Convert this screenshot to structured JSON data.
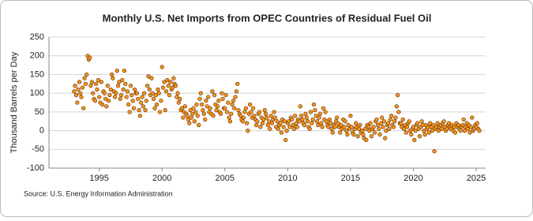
{
  "chart_data": {
    "type": "scatter",
    "title": "Monthly U.S. Net Imports from OPEC Countries of Residual Fuel Oil",
    "y_label": "Thousand Barrels per Day",
    "source": "Source: U.S. Energy Information Administration",
    "color": "#f7941d",
    "xlim": [
      1991,
      2025.75
    ],
    "xticks": [
      1995,
      2000,
      2005,
      2010,
      2015,
      2020,
      2025
    ],
    "ylim": [
      -100,
      250
    ],
    "yticks": [
      -100,
      -50,
      0,
      50,
      100,
      150,
      200,
      250
    ],
    "grid": true,
    "x": [
      1993,
      1993.08,
      1993.17,
      1993.25,
      1993.33,
      1993.42,
      1993.5,
      1993.58,
      1993.67,
      1993.75,
      1993.83,
      1993.92,
      1994,
      1994.08,
      1994.17,
      1994.25,
      1994.33,
      1994.42,
      1994.5,
      1994.58,
      1994.67,
      1994.75,
      1994.83,
      1994.92,
      1995,
      1995.08,
      1995.17,
      1995.25,
      1995.33,
      1995.42,
      1995.5,
      1995.58,
      1995.67,
      1995.75,
      1995.83,
      1995.92,
      1996,
      1996.08,
      1996.17,
      1996.25,
      1996.33,
      1996.42,
      1996.5,
      1996.58,
      1996.67,
      1996.75,
      1996.83,
      1996.92,
      1997,
      1997.08,
      1997.17,
      1997.25,
      1997.33,
      1997.42,
      1997.5,
      1997.58,
      1997.67,
      1997.75,
      1997.83,
      1997.92,
      1998,
      1998.08,
      1998.17,
      1998.25,
      1998.33,
      1998.42,
      1998.5,
      1998.58,
      1998.67,
      1998.75,
      1998.83,
      1998.92,
      1999,
      1999.08,
      1999.17,
      1999.25,
      1999.33,
      1999.42,
      1999.5,
      1999.58,
      1999.67,
      1999.75,
      1999.83,
      1999.92,
      2000,
      2000.08,
      2000.17,
      2000.25,
      2000.33,
      2000.42,
      2000.5,
      2000.58,
      2000.67,
      2000.75,
      2000.83,
      2000.92,
      2001,
      2001.08,
      2001.17,
      2001.25,
      2001.33,
      2001.42,
      2001.5,
      2001.58,
      2001.67,
      2001.75,
      2001.83,
      2001.92,
      2002,
      2002.08,
      2002.17,
      2002.25,
      2002.33,
      2002.42,
      2002.5,
      2002.58,
      2002.67,
      2002.75,
      2002.83,
      2002.92,
      2003,
      2003.08,
      2003.17,
      2003.25,
      2003.33,
      2003.42,
      2003.5,
      2003.58,
      2003.67,
      2003.75,
      2003.83,
      2003.92,
      2004,
      2004.08,
      2004.17,
      2004.25,
      2004.33,
      2004.42,
      2004.5,
      2004.58,
      2004.67,
      2004.75,
      2004.83,
      2004.92,
      2005,
      2005.08,
      2005.17,
      2005.25,
      2005.33,
      2005.42,
      2005.5,
      2005.58,
      2005.67,
      2005.75,
      2005.83,
      2005.92,
      2006,
      2006.08,
      2006.17,
      2006.25,
      2006.33,
      2006.42,
      2006.5,
      2006.58,
      2006.67,
      2006.75,
      2006.83,
      2006.92,
      2007,
      2007.08,
      2007.17,
      2007.25,
      2007.33,
      2007.42,
      2007.5,
      2007.58,
      2007.67,
      2007.75,
      2007.83,
      2007.92,
      2008,
      2008.08,
      2008.17,
      2008.25,
      2008.33,
      2008.42,
      2008.5,
      2008.58,
      2008.67,
      2008.75,
      2008.83,
      2008.92,
      2009,
      2009.08,
      2009.17,
      2009.25,
      2009.33,
      2009.42,
      2009.5,
      2009.58,
      2009.67,
      2009.75,
      2009.83,
      2009.92,
      2010,
      2010.08,
      2010.17,
      2010.25,
      2010.33,
      2010.42,
      2010.5,
      2010.58,
      2010.67,
      2010.75,
      2010.83,
      2010.92,
      2011,
      2011.08,
      2011.17,
      2011.25,
      2011.33,
      2011.42,
      2011.5,
      2011.58,
      2011.67,
      2011.75,
      2011.83,
      2011.92,
      2012,
      2012.08,
      2012.17,
      2012.25,
      2012.33,
      2012.42,
      2012.5,
      2012.58,
      2012.67,
      2012.75,
      2012.83,
      2012.92,
      2013,
      2013.08,
      2013.17,
      2013.25,
      2013.33,
      2013.42,
      2013.5,
      2013.58,
      2013.67,
      2013.75,
      2013.83,
      2013.92,
      2014,
      2014.08,
      2014.17,
      2014.25,
      2014.33,
      2014.42,
      2014.5,
      2014.58,
      2014.67,
      2014.75,
      2014.83,
      2014.92,
      2015,
      2015.08,
      2015.17,
      2015.25,
      2015.33,
      2015.42,
      2015.5,
      2015.58,
      2015.67,
      2015.75,
      2015.83,
      2015.92,
      2016,
      2016.08,
      2016.17,
      2016.25,
      2016.33,
      2016.42,
      2016.5,
      2016.58,
      2016.67,
      2016.75,
      2016.83,
      2016.92,
      2017,
      2017.08,
      2017.17,
      2017.25,
      2017.33,
      2017.42,
      2017.5,
      2017.58,
      2017.67,
      2017.75,
      2017.83,
      2017.92,
      2018,
      2018.08,
      2018.17,
      2018.25,
      2018.33,
      2018.42,
      2018.5,
      2018.58,
      2018.67,
      2018.75,
      2018.83,
      2018.92,
      2019,
      2019.08,
      2019.17,
      2019.25,
      2019.33,
      2019.42,
      2019.5,
      2019.58,
      2019.67,
      2019.75,
      2019.83,
      2019.92,
      2020,
      2020.08,
      2020.17,
      2020.25,
      2020.33,
      2020.42,
      2020.5,
      2020.58,
      2020.67,
      2020.75,
      2020.83,
      2020.92,
      2021,
      2021.08,
      2021.17,
      2021.25,
      2021.33,
      2021.42,
      2021.5,
      2021.58,
      2021.67,
      2021.75,
      2021.83,
      2021.92,
      2022,
      2022.08,
      2022.17,
      2022.25,
      2022.33,
      2022.42,
      2022.5,
      2022.58,
      2022.67,
      2022.75,
      2022.83,
      2022.92,
      2023,
      2023.08,
      2023.17,
      2023.25,
      2023.33,
      2023.42,
      2023.5,
      2023.58,
      2023.67,
      2023.75,
      2023.83,
      2023.92,
      2024,
      2024.08,
      2024.17,
      2024.25,
      2024.33,
      2024.42,
      2024.5,
      2024.58,
      2024.67,
      2024.75,
      2024.83,
      2024.92,
      2025,
      2025.08,
      2025.17,
      2025.25
    ],
    "values": [
      105,
      120,
      95,
      75,
      110,
      130,
      100,
      90,
      115,
      60,
      140,
      125,
      150,
      200,
      190,
      195,
      120,
      130,
      100,
      85,
      80,
      125,
      110,
      135,
      90,
      75,
      130,
      70,
      105,
      100,
      85,
      65,
      120,
      80,
      95,
      110,
      150,
      140,
      105,
      90,
      100,
      160,
      120,
      130,
      85,
      95,
      135,
      110,
      160,
      125,
      90,
      105,
      70,
      50,
      120,
      95,
      80,
      60,
      110,
      100,
      100,
      85,
      55,
      40,
      75,
      90,
      65,
      100,
      55,
      80,
      120,
      145,
      110,
      95,
      140,
      100,
      85,
      60,
      95,
      70,
      110,
      100,
      50,
      80,
      170,
      115,
      130,
      55,
      105,
      135,
      120,
      95,
      130,
      110,
      115,
      140,
      125,
      120,
      90,
      100,
      75,
      85,
      55,
      60,
      35,
      50,
      65,
      45,
      40,
      30,
      20,
      55,
      35,
      45,
      60,
      25,
      50,
      70,
      40,
      15,
      85,
      100,
      70,
      55,
      45,
      30,
      80,
      65,
      90,
      50,
      60,
      45,
      105,
      40,
      95,
      70,
      55,
      65,
      80,
      50,
      45,
      100,
      85,
      60,
      60,
      95,
      50,
      75,
      35,
      25,
      45,
      70,
      80,
      60,
      90,
      105,
      125,
      55,
      45,
      40,
      30,
      25,
      35,
      50,
      60,
      20,
      0,
      45,
      70,
      50,
      35,
      60,
      40,
      30,
      15,
      25,
      45,
      50,
      10,
      35,
      20,
      30,
      55,
      45,
      35,
      15,
      25,
      5,
      40,
      20,
      30,
      50,
      35,
      10,
      25,
      5,
      15,
      20,
      -5,
      30,
      10,
      25,
      -25,
      0,
      20,
      25,
      10,
      35,
      30,
      15,
      5,
      40,
      20,
      10,
      30,
      25,
      65,
      40,
      30,
      20,
      15,
      45,
      35,
      25,
      10,
      5,
      50,
      20,
      30,
      70,
      55,
      40,
      25,
      15,
      35,
      45,
      20,
      10,
      60,
      30,
      50,
      25,
      15,
      10,
      30,
      20,
      5,
      -5,
      15,
      10,
      25,
      35,
      20,
      10,
      -5,
      15,
      5,
      30,
      10,
      25,
      0,
      -10,
      15,
      5,
      40,
      10,
      -5,
      -10,
      5,
      20,
      10,
      -15,
      5,
      15,
      -5,
      0,
      -10,
      -20,
      5,
      -25,
      15,
      10,
      0,
      20,
      -15,
      5,
      10,
      -5,
      25,
      30,
      15,
      5,
      -10,
      20,
      35,
      10,
      25,
      -20,
      0,
      15,
      20,
      5,
      30,
      40,
      15,
      10,
      25,
      35,
      65,
      95,
      50,
      20,
      20,
      10,
      30,
      5,
      15,
      -5,
      10,
      20,
      25,
      0,
      -10,
      5,
      10,
      -25,
      0,
      15,
      20,
      5,
      -15,
      10,
      25,
      15,
      0,
      -10,
      15,
      5,
      10,
      -5,
      20,
      10,
      0,
      15,
      -55,
      5,
      10,
      20,
      0,
      10,
      15,
      5,
      20,
      25,
      10,
      0,
      5,
      15,
      20,
      10,
      5,
      15,
      0,
      10,
      -5,
      20,
      10,
      15,
      5,
      0,
      10,
      15,
      30,
      0,
      10,
      20,
      5,
      15,
      -5,
      10,
      35,
      0,
      5,
      15,
      10,
      20,
      5,
      0
    ]
  }
}
